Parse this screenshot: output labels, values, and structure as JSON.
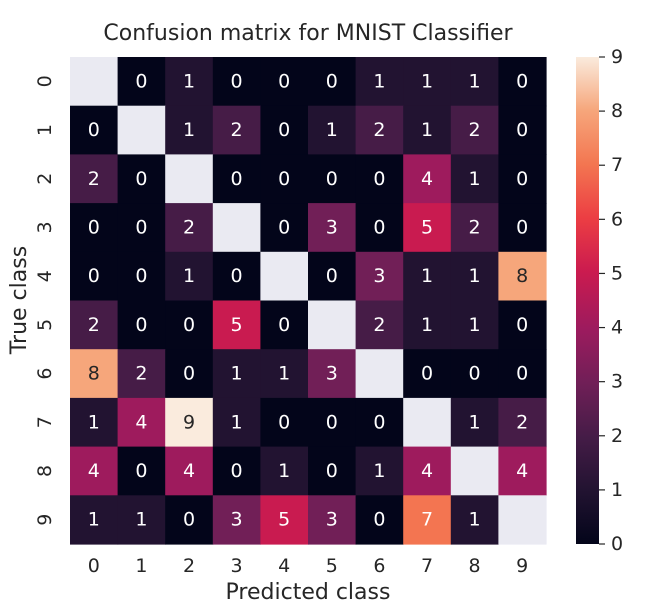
{
  "chart_data": {
    "type": "heatmap",
    "title": "Confusion matrix for MNIST Classifier",
    "xlabel": "Predicted class",
    "ylabel": "True class",
    "x_ticks": [
      "0",
      "1",
      "2",
      "3",
      "4",
      "5",
      "6",
      "7",
      "8",
      "9"
    ],
    "y_ticks": [
      "0",
      "1",
      "2",
      "3",
      "4",
      "5",
      "6",
      "7",
      "8",
      "9"
    ],
    "values": [
      [
        null,
        0,
        1,
        0,
        0,
        0,
        1,
        1,
        1,
        0
      ],
      [
        0,
        null,
        1,
        2,
        0,
        1,
        2,
        1,
        2,
        0
      ],
      [
        2,
        0,
        null,
        0,
        0,
        0,
        0,
        4,
        1,
        0
      ],
      [
        0,
        0,
        2,
        null,
        0,
        3,
        0,
        5,
        2,
        0
      ],
      [
        0,
        0,
        1,
        0,
        null,
        0,
        3,
        1,
        1,
        8
      ],
      [
        2,
        0,
        0,
        5,
        0,
        null,
        2,
        1,
        1,
        0
      ],
      [
        8,
        2,
        0,
        1,
        1,
        3,
        null,
        0,
        0,
        0
      ],
      [
        1,
        4,
        9,
        1,
        0,
        0,
        0,
        null,
        1,
        2
      ],
      [
        4,
        0,
        4,
        0,
        1,
        0,
        1,
        4,
        null,
        4
      ],
      [
        1,
        1,
        0,
        3,
        5,
        3,
        0,
        7,
        1,
        null
      ]
    ],
    "colorbar": {
      "min": 0,
      "max": 9,
      "ticks": [
        "0",
        "1",
        "2",
        "3",
        "4",
        "5",
        "6",
        "7",
        "8",
        "9"
      ]
    },
    "colors": {
      "masked": "#eaeaf2",
      "text_dark": "#262626",
      "text_light": "#ffffff"
    }
  }
}
